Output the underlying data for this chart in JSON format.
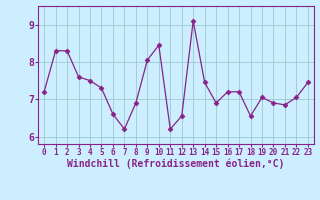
{
  "x": [
    0,
    1,
    2,
    3,
    4,
    5,
    6,
    7,
    8,
    9,
    10,
    11,
    12,
    13,
    14,
    15,
    16,
    17,
    18,
    19,
    20,
    21,
    22,
    23
  ],
  "y": [
    7.2,
    8.3,
    8.3,
    7.6,
    7.5,
    7.3,
    6.6,
    6.2,
    6.9,
    8.05,
    8.45,
    6.2,
    6.55,
    9.1,
    7.45,
    6.9,
    7.2,
    7.2,
    6.55,
    7.05,
    6.9,
    6.85,
    7.05,
    7.45
  ],
  "line_color": "#882288",
  "marker": "D",
  "marker_size": 2.5,
  "bg_color": "#cceeff",
  "grid_color": "#99cccc",
  "xlabel": "Windchill (Refroidissement éolien,°C)",
  "ylim": [
    5.8,
    9.5
  ],
  "xlim": [
    -0.5,
    23.5
  ],
  "yticks": [
    6,
    7,
    8,
    9
  ],
  "xticks": [
    0,
    1,
    2,
    3,
    4,
    5,
    6,
    7,
    8,
    9,
    10,
    11,
    12,
    13,
    14,
    15,
    16,
    17,
    18,
    19,
    20,
    21,
    22,
    23
  ],
  "tick_fontsize": 5.5,
  "xlabel_fontsize": 7,
  "ytick_fontsize": 7,
  "spine_color": "#882288",
  "axis_label_color": "#882288",
  "tick_color": "#882288"
}
